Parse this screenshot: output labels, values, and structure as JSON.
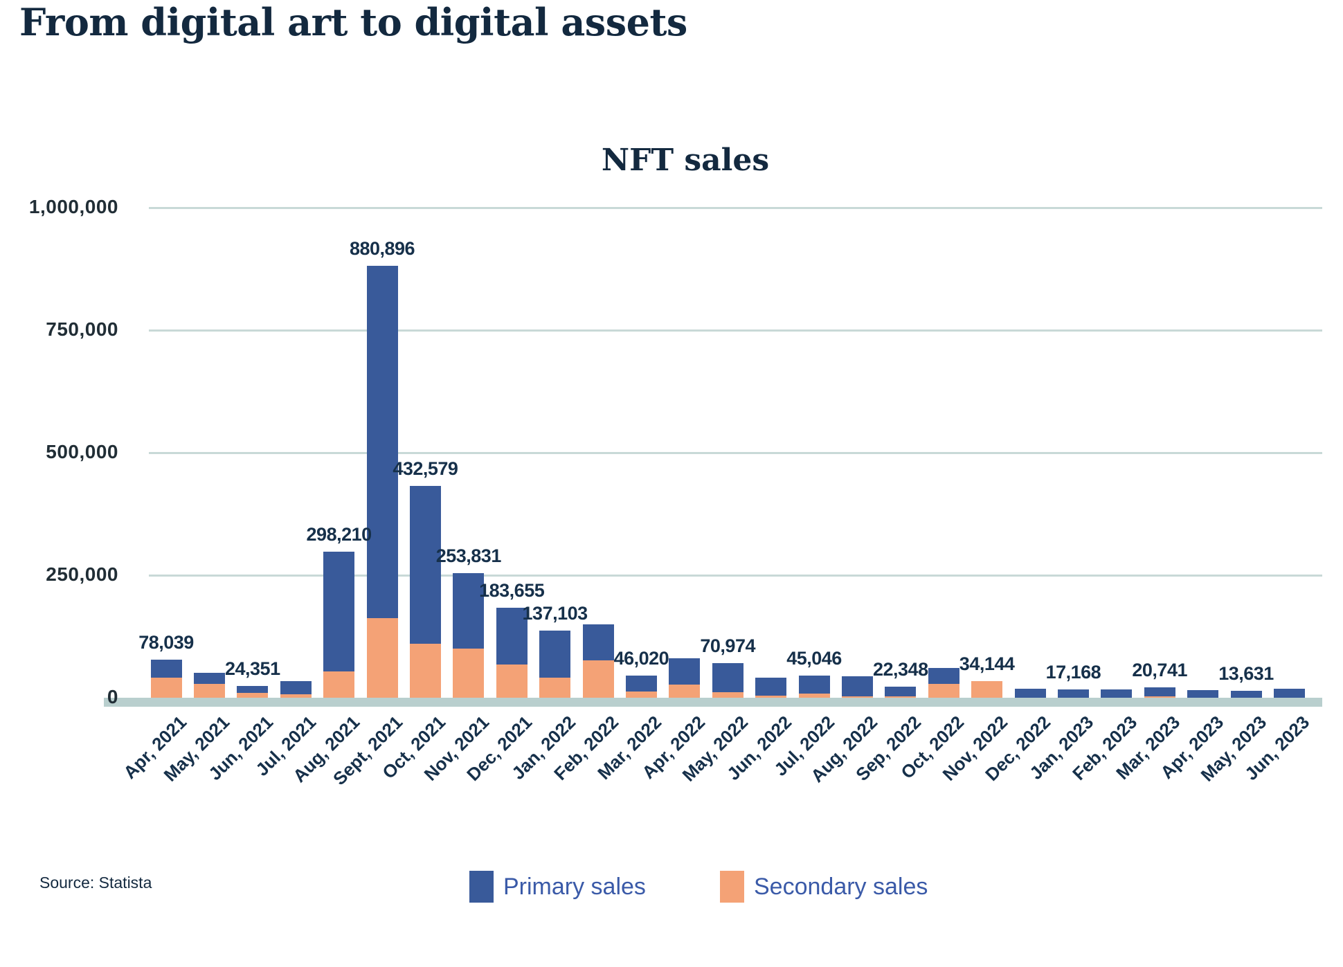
{
  "page": {
    "title": "From digital art to digital assets",
    "source": "Source: Statista"
  },
  "chart": {
    "title": "NFT sales"
  },
  "legend": {
    "items": [
      {
        "label": "Primary sales",
        "color": "#395a9a"
      },
      {
        "label": "Secondary sales",
        "color": "#f4a276"
      }
    ]
  },
  "colors": {
    "primary": "#395a9a",
    "secondary": "#f4a276",
    "gridline": "#c8d9d7",
    "baseline_band": "#b9cfce",
    "title_navy": "#13293f",
    "label_navy": "#16304a",
    "legend_text_blue": "#3a5aa8"
  },
  "chart_data": {
    "type": "bar",
    "stacked": true,
    "stack_bottom": "Secondary sales",
    "title": "NFT sales",
    "xlabel": "",
    "ylabel": "",
    "ylim": [
      0,
      1000000
    ],
    "grid": true,
    "legend_position": "bottom",
    "xlabel_rotation_deg": -45,
    "categories": [
      "Apr, 2021",
      "May, 2021",
      "Jun, 2021",
      "Jul, 2021",
      "Aug, 2021",
      "Sept, 2021",
      "Oct, 2021",
      "Nov, 2021",
      "Dec, 2021",
      "Jan, 2022",
      "Feb, 2022",
      "Mar, 2022",
      "Apr, 2022",
      "May, 2022",
      "Jun, 2022",
      "Jul, 2022",
      "Aug, 2022",
      "Sep, 2022",
      "Oct, 2022",
      "Nov, 2022",
      "Dec, 2022",
      "Jan, 2023",
      "Feb, 2023",
      "Mar, 2023",
      "Apr, 2023",
      "May, 2023",
      "Jun, 2023"
    ],
    "series": [
      {
        "name": "Primary sales",
        "color": "#395a9a",
        "values": [
          37039,
          22000,
          14351,
          27500,
          244210,
          718896,
          322579,
          153831,
          115655,
          96103,
          74000,
          33020,
          53000,
          58974,
          37000,
          37046,
          41000,
          19848,
          33000,
          0,
          18500,
          17168,
          17000,
          17741,
          16000,
          13631,
          18500
        ]
      },
      {
        "name": "Secondary sales",
        "color": "#f4a276",
        "values": [
          41000,
          28000,
          10000,
          6500,
          54000,
          162000,
          110000,
          100000,
          68000,
          41000,
          76000,
          13000,
          27000,
          12000,
          4000,
          8000,
          3000,
          2500,
          28000,
          34144,
          0,
          0,
          0,
          3000,
          0,
          0,
          0
        ]
      }
    ],
    "totals": [
      78039,
      50000,
      24351,
      34000,
      298210,
      880896,
      432579,
      253831,
      183655,
      137103,
      150000,
      46020,
      80000,
      70974,
      41000,
      45046,
      44000,
      22348,
      61000,
      34144,
      18500,
      17168,
      17000,
      20741,
      16000,
      13631,
      18500
    ],
    "bar_value_labels": [
      "78,039",
      null,
      "24,351",
      null,
      "298,210",
      "880,896",
      "432,579",
      "253,831",
      "183,655",
      "137,103",
      null,
      "46,020",
      null,
      "70,974",
      null,
      "45,046",
      null,
      "22,348",
      null,
      "34,144",
      null,
      "17,168",
      null,
      "20,741",
      null,
      "13,631",
      null
    ],
    "yticks": [
      {
        "label": "0",
        "value": 0
      },
      {
        "label": "250,000",
        "value": 250000
      },
      {
        "label": "500,000",
        "value": 500000
      },
      {
        "label": "750,000",
        "value": 750000
      },
      {
        "label": "1,000,000",
        "value": 1000000
      }
    ]
  }
}
